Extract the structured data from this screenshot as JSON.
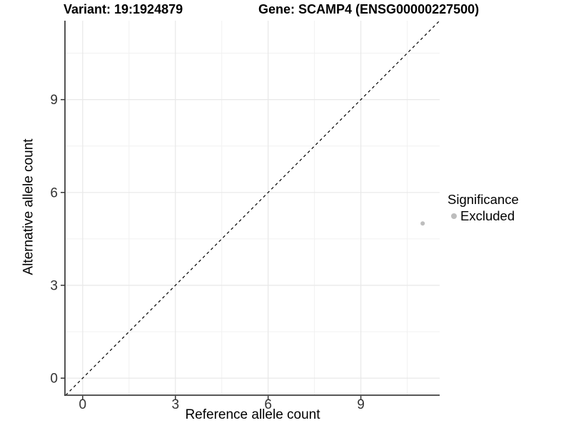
{
  "figure": {
    "title_variant": "Variant: 19:1924879",
    "title_gene": "Gene: SCAMP4 (ENSG00000227500)"
  },
  "legend": {
    "title": "Significance",
    "entries": [
      {
        "label": "Excluded",
        "color": "#bdbdbd"
      }
    ]
  },
  "colors": {
    "point": "#bdbdbd",
    "major_grid": "#e8e8e8",
    "minor_grid": "#f1f1f1",
    "axis_line": "#404040",
    "tick_mark": "#333333",
    "tick_text": "#333333",
    "reference_line": "#000000",
    "background": "#ffffff"
  },
  "chart_data": {
    "type": "scatter",
    "title": "Variant: 19:1924879",
    "subtitle": "Gene: SCAMP4 (ENSG00000227500)",
    "xlabel": "Reference allele count",
    "ylabel": "Alternative allele count",
    "xlim": [
      -0.55,
      11.55
    ],
    "ylim": [
      -0.55,
      11.55
    ],
    "x_ticks": [
      0,
      3,
      6,
      9
    ],
    "y_ticks": [
      0,
      3,
      6,
      9
    ],
    "x_minor_ticks": [
      1.5,
      4.5,
      7.5,
      10.5
    ],
    "y_minor_ticks": [
      1.5,
      4.5,
      7.5,
      10.5
    ],
    "grid": true,
    "legend_title": "Significance",
    "legend_position": "right",
    "series": [
      {
        "name": "Excluded",
        "color": "#bdbdbd",
        "points": [
          {
            "x": 11,
            "y": 5
          }
        ]
      }
    ],
    "reference_line": {
      "type": "identity",
      "slope": 1,
      "intercept": 0,
      "linetype": "dashed",
      "color": "#000000"
    }
  }
}
